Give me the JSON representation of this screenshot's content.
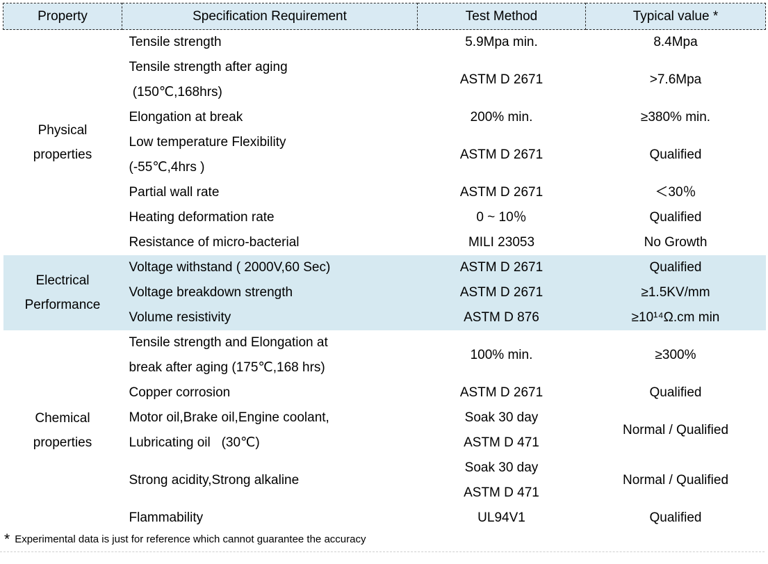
{
  "table": {
    "columns": [
      "Property",
      "Specification Requirement",
      "Test Method",
      "Typical value *"
    ],
    "groups": [
      {
        "property": "Physical\nproperties",
        "rows": [
          {
            "spec": "Tensile strength",
            "method": "5.9Mpa min.",
            "value": "8.4Mpa"
          },
          {
            "spec": "Tensile strength after aging\n (150℃,168hrs)",
            "method": "ASTM D 2671",
            "value": ">7.6Mpa"
          },
          {
            "spec": "Elongation at break",
            "method": "200% min.",
            "value": "≥380% min."
          },
          {
            "spec": "Low temperature Flexibility\n(-55℃,4hrs )",
            "method": "ASTM D 2671",
            "value": "Qualified"
          },
          {
            "spec": "Partial wall rate",
            "method": "ASTM D 2671",
            "value": "＜30％"
          },
          {
            "spec": "Heating deformation rate",
            "method": "0 ~ 10％",
            "value": "Qualified"
          },
          {
            "spec": "Resistance of micro-bacterial",
            "method": "MILI 23053",
            "value": "No Growth"
          }
        ]
      },
      {
        "property": "Electrical\nPerformance",
        "rows": [
          {
            "spec": "Voltage withstand ( 2000V,60 Sec)",
            "method": "ASTM D 2671",
            "value": "Qualified"
          },
          {
            "spec": "Voltage breakdown strength",
            "method": "ASTM D 2671",
            "value": "≥1.5KV/mm"
          },
          {
            "spec": "Volume resistivity",
            "method": "ASTM D 876",
            "value": "≥10¹⁴Ω.cm min"
          }
        ]
      },
      {
        "property": "Chemical\nproperties",
        "rows": [
          {
            "spec": "Tensile strength and Elongation at\nbreak after aging (175℃,168 hrs)",
            "method": "100% min.",
            "value": "≥300%"
          },
          {
            "spec": "Copper corrosion",
            "method": "ASTM D 2671",
            "value": "Qualified"
          },
          {
            "spec": "Motor oil,Brake oil,Engine coolant,\nLubricating oil   (30℃)",
            "method": "Soak 30 day\nASTM D 471",
            "value": "Normal / Qualified"
          },
          {
            "spec": "Strong acidity,Strong alkaline",
            "method": "Soak 30 day\nASTM D 471",
            "value": "Normal / Qualified"
          },
          {
            "spec": "Flammability",
            "method": "UL94V1",
            "value": "Qualified"
          }
        ]
      }
    ]
  },
  "footnote": {
    "marker": "*",
    "text": "Experimental data is just for reference which cannot guarantee the accuracy"
  },
  "colors": {
    "header_bg": "#d9eaf3",
    "band_bg": "#d6e9f1",
    "text": "#000000"
  }
}
